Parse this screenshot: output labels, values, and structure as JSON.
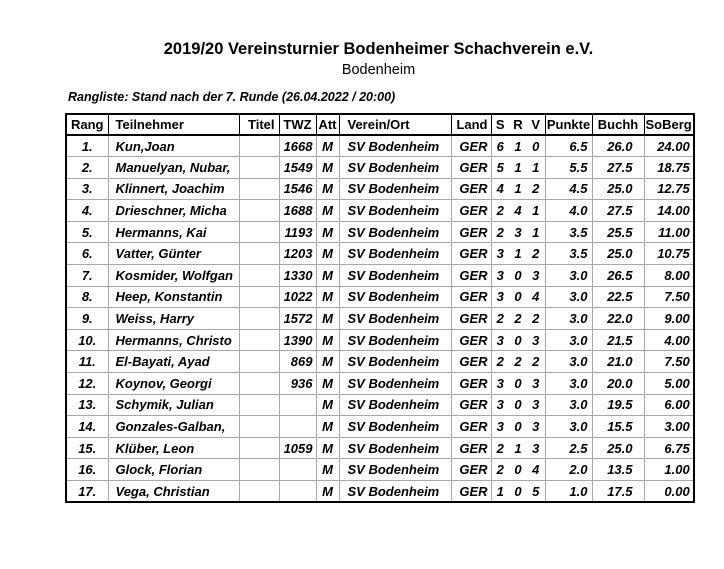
{
  "page": {
    "title": "2019/20 Vereinsturnier Bodenheimer Schachverein e.V.",
    "subtitle": "Bodenheim",
    "standings_caption": "Rangliste: Stand nach der 7. Runde (26.04.2022 / 20:00)"
  },
  "colors": {
    "border": "#000000",
    "grid": "#a8a8a8",
    "text": "#000000",
    "background": "#ffffff"
  },
  "table": {
    "columns": [
      {
        "key": "rang",
        "label": "Rang"
      },
      {
        "key": "teilnehmer",
        "label": "Teilnehmer"
      },
      {
        "key": "titel",
        "label": "Titel"
      },
      {
        "key": "twz",
        "label": "TWZ"
      },
      {
        "key": "att",
        "label": "Att"
      },
      {
        "key": "verein",
        "label": "Verein/Ort"
      },
      {
        "key": "land",
        "label": "Land"
      },
      {
        "key": "s",
        "label": "S"
      },
      {
        "key": "r",
        "label": "R"
      },
      {
        "key": "v",
        "label": "V"
      },
      {
        "key": "punkte",
        "label": "Punkte"
      },
      {
        "key": "buchh",
        "label": "Buchh"
      },
      {
        "key": "soberg",
        "label": "SoBerg"
      }
    ],
    "rows": [
      [
        "1.",
        "Kun,Joan",
        "",
        "1668",
        "M",
        "SV Bodenheim",
        "GER",
        "6",
        "1",
        "0",
        "6.5",
        "26.0",
        "24.00"
      ],
      [
        "2.",
        "Manuelyan, Nubar,",
        "",
        "1549",
        "M",
        "SV Bodenheim",
        "GER",
        "5",
        "1",
        "1",
        "5.5",
        "27.5",
        "18.75"
      ],
      [
        "3.",
        "Klinnert, Joachim",
        "",
        "1546",
        "M",
        "SV Bodenheim",
        "GER",
        "4",
        "1",
        "2",
        "4.5",
        "25.0",
        "12.75"
      ],
      [
        "4.",
        "Drieschner, Micha",
        "",
        "1688",
        "M",
        "SV Bodenheim",
        "GER",
        "2",
        "4",
        "1",
        "4.0",
        "27.5",
        "14.00"
      ],
      [
        "5.",
        "Hermanns, Kai",
        "",
        "1193",
        "M",
        "SV Bodenheim",
        "GER",
        "2",
        "3",
        "1",
        "3.5",
        "25.5",
        "11.00"
      ],
      [
        "6.",
        "Vatter, Günter",
        "",
        "1203",
        "M",
        "SV Bodenheim",
        "GER",
        "3",
        "1",
        "2",
        "3.5",
        "25.0",
        "10.75"
      ],
      [
        "7.",
        "Kosmider, Wolfgan",
        "",
        "1330",
        "M",
        "SV Bodenheim",
        "GER",
        "3",
        "0",
        "3",
        "3.0",
        "26.5",
        "8.00"
      ],
      [
        "8.",
        "Heep, Konstantin",
        "",
        "1022",
        "M",
        "SV Bodenheim",
        "GER",
        "3",
        "0",
        "4",
        "3.0",
        "22.5",
        "7.50"
      ],
      [
        "9.",
        "Weiss, Harry",
        "",
        "1572",
        "M",
        "SV Bodenheim",
        "GER",
        "2",
        "2",
        "2",
        "3.0",
        "22.0",
        "9.00"
      ],
      [
        "10.",
        "Hermanns, Christo",
        "",
        "1390",
        "M",
        "SV Bodenheim",
        "GER",
        "3",
        "0",
        "3",
        "3.0",
        "21.5",
        "4.00"
      ],
      [
        "11.",
        "El-Bayati, Ayad",
        "",
        "869",
        "M",
        "SV Bodenheim",
        "GER",
        "2",
        "2",
        "2",
        "3.0",
        "21.0",
        "7.50"
      ],
      [
        "12.",
        "Koynov, Georgi",
        "",
        "936",
        "M",
        "SV Bodenheim",
        "GER",
        "3",
        "0",
        "3",
        "3.0",
        "20.0",
        "5.00"
      ],
      [
        "13.",
        "Schymik, Julian",
        "",
        "",
        "M",
        "SV Bodenheim",
        "GER",
        "3",
        "0",
        "3",
        "3.0",
        "19.5",
        "6.00"
      ],
      [
        "14.",
        "Gonzales-Galban,",
        "",
        "",
        "M",
        "SV Bodenheim",
        "GER",
        "3",
        "0",
        "3",
        "3.0",
        "15.5",
        "3.00"
      ],
      [
        "15.",
        "Klüber, Leon",
        "",
        "1059",
        "M",
        "SV Bodenheim",
        "GER",
        "2",
        "1",
        "3",
        "2.5",
        "25.0",
        "6.75"
      ],
      [
        "16.",
        "Glock, Florian",
        "",
        "",
        "M",
        "SV Bodenheim",
        "GER",
        "2",
        "0",
        "4",
        "2.0",
        "13.5",
        "1.00"
      ],
      [
        "17.",
        "Vega, Christian",
        "",
        "",
        "M",
        "SV Bodenheim",
        "GER",
        "1",
        "0",
        "5",
        "1.0",
        "17.5",
        "0.00"
      ]
    ]
  }
}
